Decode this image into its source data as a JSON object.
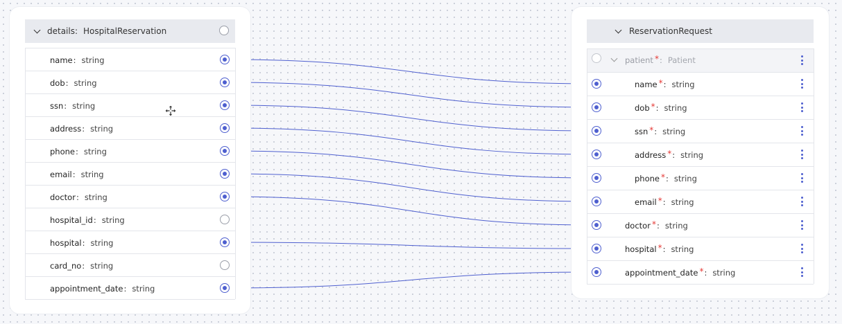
{
  "left": {
    "header_name": "details",
    "header_type": "HospitalReservation",
    "fields": [
      {
        "name": "name",
        "type": "string",
        "connected": true
      },
      {
        "name": "dob",
        "type": "string",
        "connected": true
      },
      {
        "name": "ssn",
        "type": "string",
        "connected": true
      },
      {
        "name": "address",
        "type": "string",
        "connected": true
      },
      {
        "name": "phone",
        "type": "string",
        "connected": true
      },
      {
        "name": "email",
        "type": "string",
        "connected": true
      },
      {
        "name": "doctor",
        "type": "string",
        "connected": true
      },
      {
        "name": "hospital_id",
        "type": "string",
        "connected": false
      },
      {
        "name": "hospital",
        "type": "string",
        "connected": true
      },
      {
        "name": "card_no",
        "type": "string",
        "connected": false
      },
      {
        "name": "appointment_date",
        "type": "string",
        "connected": true
      }
    ]
  },
  "right": {
    "header_type": "ReservationRequest",
    "patient": {
      "name": "patient",
      "type": "Patient"
    },
    "patient_fields": [
      {
        "name": "name",
        "type": "string"
      },
      {
        "name": "dob",
        "type": "string"
      },
      {
        "name": "ssn",
        "type": "string"
      },
      {
        "name": "address",
        "type": "string"
      },
      {
        "name": "phone",
        "type": "string"
      },
      {
        "name": "email",
        "type": "string"
      }
    ],
    "fields": [
      {
        "name": "doctor",
        "type": "string"
      },
      {
        "name": "hospital",
        "type": "string"
      },
      {
        "name": "appointment_date",
        "type": "string"
      }
    ]
  },
  "colors": {
    "accent": "#4e5fcf",
    "required": "#e53935"
  },
  "icons": {
    "header_toggle": "chevron-down-icon",
    "port": "port-icon",
    "menu": "kebab-menu-icon",
    "cursor": "move-cursor-icon"
  }
}
